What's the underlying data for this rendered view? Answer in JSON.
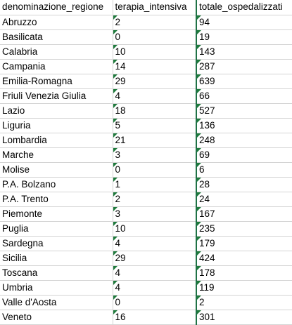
{
  "sheet": {
    "headers": [
      "denominazione_regione",
      "terapia_intensiva",
      "totale_ospedalizzati"
    ],
    "rows": [
      [
        "Abruzzo",
        "2",
        "94"
      ],
      [
        "Basilicata",
        "0",
        "19"
      ],
      [
        "Calabria",
        "10",
        "143"
      ],
      [
        "Campania",
        "14",
        "287"
      ],
      [
        "Emilia-Romagna",
        "29",
        "639"
      ],
      [
        "Friuli Venezia Giulia",
        "4",
        "66"
      ],
      [
        "Lazio",
        "18",
        "527"
      ],
      [
        "Liguria",
        "5",
        "136"
      ],
      [
        "Lombardia",
        "21",
        "248"
      ],
      [
        "Marche",
        "3",
        "69"
      ],
      [
        "Molise",
        "0",
        "6"
      ],
      [
        "P.A. Bolzano",
        "1",
        "28"
      ],
      [
        "P.A. Trento",
        "2",
        "24"
      ],
      [
        "Piemonte",
        "3",
        "167"
      ],
      [
        "Puglia",
        "10",
        "235"
      ],
      [
        "Sardegna",
        "4",
        "179"
      ],
      [
        "Sicilia",
        "29",
        "424"
      ],
      [
        "Toscana",
        "4",
        "178"
      ],
      [
        "Umbria",
        "4",
        "119"
      ],
      [
        "Valle d'Aosta",
        "0",
        "2"
      ],
      [
        "Veneto",
        "16",
        "301"
      ]
    ]
  },
  "colors": {
    "grid_line": "#d4d4d4",
    "text_indicator": "#1e7a3c",
    "selection_border": "#1f7246"
  }
}
